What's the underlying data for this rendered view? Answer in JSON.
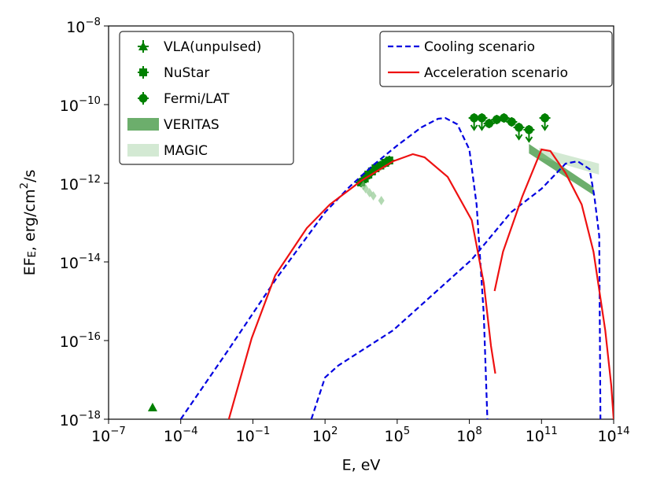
{
  "chart_data": {
    "type": "line",
    "xlabel": "E, eV",
    "ylabel": "EF_E, erg/cm^2/s",
    "xscale": "log",
    "yscale": "log",
    "xlim": [
      1e-07,
      100000000000000.0
    ],
    "ylim": [
      1e-18,
      1e-08
    ],
    "xticks": [
      {
        "value": 1e-07,
        "label": "10^−7"
      },
      {
        "value": 0.0001,
        "label": "10^−4"
      },
      {
        "value": 0.1,
        "label": "10^−1"
      },
      {
        "value": 100,
        "label": "10^2"
      },
      {
        "value": 100000.0,
        "label": "10^5"
      },
      {
        "value": 100000000.0,
        "label": "10^8"
      },
      {
        "value": 100000000000.0,
        "label": "10^11"
      },
      {
        "value": 100000000000000.0,
        "label": "10^14"
      }
    ],
    "yticks": [
      {
        "value": 1e-18,
        "label": "10^−18"
      },
      {
        "value": 1e-16,
        "label": "10^−16"
      },
      {
        "value": 1e-14,
        "label": "10^−14"
      },
      {
        "value": 1e-12,
        "label": "10^−12"
      },
      {
        "value": 1e-10,
        "label": "10^−10"
      },
      {
        "value": 1e-08,
        "label": "10^−8"
      }
    ],
    "series": [
      {
        "name": "VLA(unpulsed)",
        "kind": "points",
        "marker": "triangle",
        "color": "#008000",
        "legend": "upper left",
        "x": [
          6.76e-06
        ],
        "values": [
          2e-18
        ]
      },
      {
        "name": "NuStar",
        "kind": "points",
        "marker": "square",
        "color": "#008000",
        "legend": "upper left",
        "x": [
          3160,
          4470,
          6310,
          8910,
          12600,
          20000,
          31600,
          46800
        ],
        "values": [
          1.05e-12,
          1.32e-12,
          1.66e-12,
          2e-12,
          2.4e-12,
          2.82e-12,
          3.31e-12,
          3.8e-12
        ]
      },
      {
        "kind": "points",
        "marker": "diamond",
        "color": "#7fbf7f",
        "x": [
          3890,
          4900,
          7080,
          10200,
          21900
        ],
        "values": [
          8.7e-13,
          7.24e-13,
          5.75e-13,
          4.79e-13,
          3.63e-13
        ]
      },
      {
        "name": "Fermi/LAT",
        "kind": "points",
        "marker": "circle",
        "color": "#008000",
        "legend": "upper left",
        "x": [
          158000000.0,
          331000000.0,
          661000000.0,
          1380000000.0,
          2750000000.0,
          5750000000.0,
          11500000000.0,
          30200000000.0,
          138000000000.0
        ],
        "values": [
          4.57e-11,
          4.57e-11,
          3.31e-11,
          4.17e-11,
          4.57e-11,
          3.63e-11,
          2.63e-11,
          2.29e-11,
          4.57e-11
        ],
        "upper_limits": [
          true,
          true,
          false,
          false,
          false,
          false,
          true,
          true,
          true
        ]
      },
      {
        "name": "VERITAS",
        "kind": "band",
        "color": "#2e8b2e",
        "opacity": 0.7,
        "legend": "upper left",
        "x": [
          30200000000.0,
          14500000000000.0
        ],
        "lower": [
          5.75e-12,
          5e-13
        ],
        "upper": [
          1e-11,
          7.94e-13
        ]
      },
      {
        "name": "MAGIC",
        "kind": "band",
        "color": "#90c890",
        "opacity": 0.4,
        "legend": "upper left",
        "x": [
          79400000000.0,
          24500000000000.0
        ],
        "lower": [
          4.57e-12,
          1.66e-12
        ],
        "upper": [
          7.94e-12,
          3.16e-12
        ]
      },
      {
        "name": "Cooling scenario",
        "kind": "line",
        "dash": true,
        "color": "#0000e0",
        "legend": "upper right",
        "x": [
          0.0001,
          0.01,
          1,
          100,
          1000,
          10000,
          100000.0,
          1000000.0,
          5000000.0,
          10000000.0,
          31600000.0,
          100000000.0,
          200000000.0,
          398000000.0,
          562000000.0,
          null,
          26.9,
          100,
          347,
          67600.0,
          126000000.0,
          5370000000.0,
          100000000000.0,
          1000000000000.0,
          3160000000000.0,
          10000000000000.0,
          15800000000000.0,
          25100000000000.0,
          28200000000000.0
        ],
        "values": [
          1e-18,
          6.03e-17,
          3.98e-15,
          1.82e-13,
          7.94e-13,
          2.88e-12,
          9.12e-12,
          2.63e-11,
          4.37e-11,
          4.57e-11,
          3.16e-11,
          7.24e-12,
          2.88e-13,
          4.57e-16,
          1e-18,
          null,
          1e-18,
          1.15e-17,
          2.29e-17,
          1.82e-16,
          1.15e-14,
          1.82e-13,
          7.24e-13,
          3.16e-12,
          3.63e-12,
          2.29e-12,
          4.57e-13,
          4.57e-14,
          1e-18
        ]
      },
      {
        "name": "Acceleration scenario",
        "kind": "line",
        "dash": false,
        "color": "#ee1111",
        "legend": "upper right",
        "x": [
          0.01,
          0.0891,
          0.851,
          17.4,
          158,
          3160,
          67600.0,
          447000.0,
          1380000.0,
          12600000.0,
          126000000.0,
          398000000.0,
          794000000.0,
          1200000000.0,
          null,
          1120000000.0,
          2510000000.0,
          15800000000.0,
          100000000000.0,
          234000000000.0,
          1000000000000.0,
          4680000000000.0,
          14500000000000.0,
          44700000000000.0,
          79400000000000.0,
          100000000000000.0
        ],
        "values": [
          1e-18,
          1.15e-16,
          4.57e-15,
          7.24e-14,
          2.88e-13,
          1.15e-12,
          3.63e-12,
          5.5e-12,
          4.57e-12,
          1.45e-12,
          1.15e-13,
          2.88e-15,
          7.24e-17,
          1.45e-17,
          null,
          1.82e-15,
          1.82e-14,
          4.57e-13,
          7.24e-12,
          6.61e-12,
          1.82e-12,
          2.88e-13,
          1.82e-14,
          1.82e-16,
          7.24e-18,
          1e-18
        ]
      }
    ]
  }
}
